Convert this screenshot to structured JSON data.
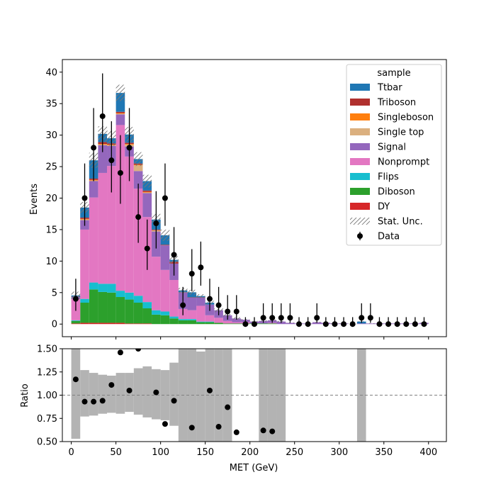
{
  "chart_data": [
    {
      "type": "bar",
      "subtype": "stacked-histogram",
      "title": "",
      "xlabel": "",
      "ylabel": "Events",
      "xlim": [
        -10,
        420
      ],
      "ylim": [
        -2,
        42
      ],
      "x_ticks": [
        0,
        50,
        100,
        150,
        200,
        250,
        300,
        350,
        400
      ],
      "y_ticks": [
        0,
        5,
        10,
        15,
        20,
        25,
        30,
        35,
        40
      ],
      "y_tick_labels": [
        "0",
        "5",
        "10",
        "15",
        "20",
        "25",
        "30",
        "35",
        "40"
      ],
      "bin_edges": [
        0,
        10,
        20,
        30,
        40,
        50,
        60,
        70,
        80,
        90,
        100,
        110,
        120,
        130,
        140,
        150,
        160,
        170,
        180,
        190,
        200,
        210,
        220,
        230,
        240,
        250,
        260,
        270,
        280,
        290,
        300,
        310,
        320,
        330,
        340,
        350,
        360,
        370,
        380,
        390,
        400
      ],
      "legend": {
        "title": "sample",
        "position": "top-right",
        "entries": [
          "Ttbar",
          "Triboson",
          "Singleboson",
          "Single top",
          "Signal",
          "Nonprompt",
          "Flips",
          "Diboson",
          "DY",
          "Stat. Unc.",
          "Data"
        ]
      },
      "series": [
        {
          "name": "DY",
          "color": "#d62728",
          "values": [
            0.1,
            0.2,
            0.2,
            0.2,
            0.2,
            0.2,
            0.1,
            0.1,
            0.1,
            0,
            0,
            0,
            0,
            0,
            0,
            0,
            0,
            0,
            0,
            0,
            0,
            0,
            0,
            0,
            0,
            0,
            0,
            0,
            0,
            0,
            0,
            0,
            0,
            0,
            0,
            0,
            0,
            0,
            0,
            0
          ]
        },
        {
          "name": "Diboson",
          "color": "#2ca02c",
          "values": [
            0.4,
            3.2,
            5.3,
            4.9,
            4.8,
            4.1,
            3.8,
            3.3,
            2.4,
            1.5,
            1.4,
            0.9,
            0.6,
            0.6,
            0.3,
            0.3,
            0.2,
            0.1,
            0.1,
            0.1,
            0.1,
            0.1,
            0.1,
            0,
            0,
            0,
            0,
            0,
            0,
            0,
            0,
            0,
            0,
            0,
            0,
            0,
            0,
            0,
            0,
            0
          ]
        },
        {
          "name": "Flips",
          "color": "#17becf",
          "values": [
            0.1,
            0.6,
            1.1,
            1.3,
            1.4,
            1.0,
            1.1,
            1.1,
            1.0,
            0.7,
            0.6,
            0.3,
            0.2,
            0.2,
            0.1,
            0.1,
            0,
            0,
            0,
            0,
            0,
            0,
            0,
            0,
            0,
            0,
            0,
            0,
            0,
            0,
            0,
            0,
            0,
            0,
            0,
            0,
            0,
            0,
            0,
            0
          ]
        },
        {
          "name": "Nonprompt",
          "color": "#e377c2",
          "values": [
            3.4,
            11.0,
            13.5,
            17.6,
            18.7,
            26.3,
            21.6,
            17.0,
            13.5,
            8.5,
            6.6,
            5.8,
            1.6,
            1.4,
            2.5,
            1.0,
            0.8,
            0.4,
            0.2,
            0.2,
            0,
            0,
            0.1,
            0,
            0,
            0,
            0,
            0,
            0,
            0,
            0,
            0,
            0,
            0,
            0,
            0,
            0,
            0,
            0,
            0
          ]
        },
        {
          "name": "Signal",
          "color": "#9467bd",
          "values": [
            0.3,
            1.5,
            2.6,
            4.4,
            3.2,
            1.7,
            1.6,
            2.8,
            3.8,
            4.0,
            3.9,
            2.6,
            2.6,
            2.0,
            1.3,
            1.7,
            1.2,
            0.9,
            0.6,
            0.4,
            0.3,
            0.4,
            0.4,
            0.4,
            0.2,
            0.1,
            0.1,
            0.3,
            0.2,
            0.1,
            0.1,
            0,
            0.1,
            0.1,
            0.1,
            0.1,
            0.1,
            0.1,
            0.1,
            0.2
          ]
        },
        {
          "name": "Single top",
          "color": "#dbb07f",
          "values": [
            0,
            0.1,
            0.1,
            0.1,
            0.1,
            0.1,
            0.3,
            0.9,
            0.1,
            0.2,
            0,
            0,
            0,
            0,
            0,
            0,
            0,
            0,
            0,
            0,
            0,
            0,
            0,
            0,
            0,
            0,
            0,
            0,
            0,
            0,
            0,
            0,
            0,
            0,
            0,
            0,
            0,
            0,
            0,
            0
          ]
        },
        {
          "name": "Singleboson",
          "color": "#ff7f0e",
          "values": [
            0,
            0.1,
            0.1,
            0.1,
            0.1,
            0.1,
            0.1,
            0.1,
            0.1,
            0,
            0,
            0,
            0,
            0,
            0,
            0,
            0,
            0,
            0,
            0,
            0,
            0,
            0,
            0,
            0,
            0,
            0,
            0,
            0,
            0,
            0,
            0,
            0,
            0,
            0,
            0,
            0,
            0,
            0,
            0
          ]
        },
        {
          "name": "Triboson",
          "color": "#b0302e",
          "values": [
            0.05,
            0.2,
            0.2,
            0.3,
            0.2,
            0.2,
            0.2,
            0.2,
            0.2,
            0.1,
            0.1,
            0.3,
            0.05,
            0.05,
            0.05,
            0,
            0,
            0,
            0,
            0,
            0,
            0,
            0,
            0,
            0,
            0,
            0,
            0,
            0,
            0,
            0,
            0,
            0,
            0,
            0,
            0,
            0,
            0,
            0,
            0
          ]
        },
        {
          "name": "Ttbar",
          "color": "#1f77b4",
          "values": [
            0.2,
            1.6,
            2.9,
            1.3,
            0.8,
            3.0,
            1.3,
            0.7,
            1.5,
            1.6,
            1.5,
            0.3,
            0.3,
            0.8,
            0.2,
            0.3,
            0,
            0,
            0,
            0,
            0,
            0,
            0,
            0,
            0,
            0,
            0,
            0,
            0,
            0,
            0,
            0,
            0.3,
            0,
            0,
            0,
            0,
            0,
            0,
            0
          ]
        }
      ],
      "stat_unc": [
        0.6,
        0.9,
        1.2,
        1.2,
        1.2,
        1.3,
        1.2,
        1.1,
        1.0,
        0.9,
        0.9,
        0.6,
        0.4,
        0.4,
        0.3,
        0.3,
        0.3,
        0.2,
        0.2,
        0.1,
        0.1,
        0.1,
        0.1,
        0.1,
        0.05,
        0.05,
        0.05,
        0.05,
        0.05,
        0.05,
        0.05,
        0.05,
        0.05,
        0.05,
        0.05,
        0.05,
        0.05,
        0.05,
        0.05,
        0.05
      ],
      "data": {
        "name": "Data",
        "x": [
          5,
          15,
          25,
          35,
          45,
          55,
          65,
          75,
          85,
          95,
          105,
          115,
          125,
          135,
          145,
          155,
          165,
          175,
          185,
          195,
          205,
          215,
          225,
          235,
          245,
          255,
          265,
          275,
          285,
          295,
          305,
          315,
          325,
          335,
          345,
          355,
          365,
          375,
          385,
          395
        ],
        "y": [
          4,
          20,
          28,
          33,
          26,
          24,
          28,
          17,
          12,
          16,
          20,
          11,
          3,
          8,
          9,
          4,
          3,
          2,
          2,
          0,
          0,
          1,
          1,
          1,
          1,
          0,
          0,
          1,
          0,
          0,
          0,
          0,
          1,
          1,
          0,
          0,
          0,
          0,
          0,
          0
        ],
        "yerr_up": [
          3.2,
          5.5,
          6.3,
          6.8,
          6.2,
          6.0,
          6.3,
          5.3,
          4.6,
          5.1,
          5.5,
          4.4,
          2.9,
          3.9,
          4.1,
          3.2,
          2.9,
          2.6,
          2.6,
          1.1,
          1.1,
          2.3,
          2.3,
          2.3,
          2.3,
          1.1,
          1.1,
          2.3,
          1.1,
          1.1,
          1.1,
          1.1,
          2.3,
          2.3,
          1.1,
          1.1,
          1.1,
          1.1,
          1.1,
          1.1
        ],
        "yerr_down": [
          1.9,
          4.4,
          5.3,
          5.7,
          5.1,
          4.9,
          5.3,
          4.1,
          3.4,
          4.0,
          4.4,
          3.3,
          1.6,
          2.8,
          2.9,
          1.9,
          1.6,
          1.3,
          1.3,
          0,
          0,
          0.8,
          0.8,
          0.8,
          0.8,
          0,
          0,
          0.8,
          0,
          0,
          0,
          0,
          0.8,
          0.8,
          0,
          0,
          0,
          0,
          0,
          0
        ]
      }
    },
    {
      "type": "scatter",
      "subtype": "ratio-panel",
      "title": "",
      "xlabel": "MET (GeV)",
      "ylabel": "Ratio",
      "xlim": [
        -10,
        420
      ],
      "ylim": [
        0.5,
        1.5
      ],
      "x_ticks": [
        0,
        50,
        100,
        150,
        200,
        250,
        300,
        350,
        400
      ],
      "x_tick_labels": [
        "0",
        "50",
        "100",
        "150",
        "200",
        "250",
        "300",
        "350",
        "400"
      ],
      "y_ticks": [
        0.5,
        0.75,
        1.0,
        1.25,
        1.5
      ],
      "y_tick_labels": [
        "0.50",
        "0.75",
        "1.00",
        "1.25",
        "1.50"
      ],
      "reference_line": 1.0,
      "unc_band": {
        "color": "#b3b3b3",
        "lo": [
          0.53,
          0.77,
          0.78,
          0.8,
          0.81,
          0.8,
          0.82,
          0.79,
          0.76,
          0.74,
          0.73,
          0.67,
          0.5,
          0.5,
          0.5,
          0.5,
          0.5,
          0.5,
          null,
          null,
          null,
          0.5,
          0.5,
          0.5,
          null,
          null,
          null,
          null,
          null,
          null,
          null,
          null,
          0.5,
          null,
          null,
          null,
          null,
          null,
          null,
          null
        ],
        "hi": [
          1.5,
          1.27,
          1.24,
          1.22,
          1.21,
          1.24,
          1.24,
          1.29,
          1.31,
          1.28,
          1.27,
          1.35,
          1.5,
          1.5,
          1.47,
          1.5,
          1.5,
          1.5,
          null,
          null,
          null,
          1.5,
          1.5,
          1.5,
          null,
          null,
          null,
          null,
          null,
          null,
          null,
          null,
          1.5,
          null,
          null,
          null,
          null,
          null,
          null,
          null
        ]
      },
      "x": [
        5,
        15,
        25,
        35,
        45,
        55,
        65,
        75,
        95,
        105,
        115,
        135,
        155,
        165,
        175,
        185,
        215,
        225
      ],
      "y": [
        1.17,
        0.93,
        0.93,
        0.94,
        1.11,
        1.46,
        1.05,
        1.5,
        1.03,
        0.69,
        0.94,
        0.65,
        1.05,
        0.66,
        0.87,
        0.6,
        0.62,
        0.61
      ]
    }
  ]
}
